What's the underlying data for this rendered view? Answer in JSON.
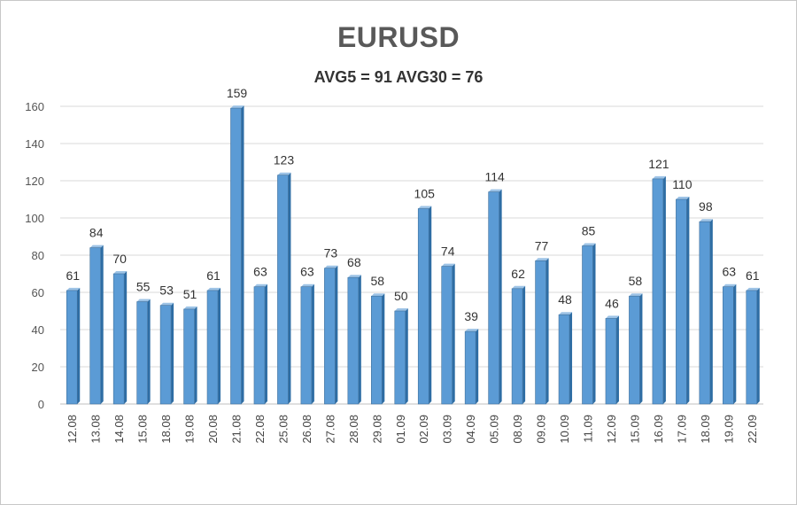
{
  "chart_data": {
    "type": "bar",
    "title": "EURUSD",
    "subtitle": "AVG5 = 91 AVG30 = 76",
    "categories": [
      "12.08",
      "13.08",
      "14.08",
      "15.08",
      "18.08",
      "19.08",
      "20.08",
      "21.08",
      "22.08",
      "25.08",
      "26.08",
      "27.08",
      "28.08",
      "29.08",
      "01.09",
      "02.09",
      "03.09",
      "04.09",
      "05.09",
      "08.09",
      "09.09",
      "10.09",
      "11.09",
      "12.09",
      "15.09",
      "16.09",
      "17.09",
      "18.09",
      "19.09",
      "22.09"
    ],
    "values": [
      61,
      84,
      70,
      55,
      53,
      51,
      61,
      159,
      63,
      123,
      63,
      73,
      68,
      58,
      50,
      105,
      74,
      39,
      114,
      62,
      77,
      48,
      85,
      46,
      58,
      121,
      110,
      98,
      63,
      61
    ],
    "yticks": [
      0,
      20,
      40,
      60,
      80,
      100,
      120,
      140,
      160
    ],
    "ylim": [
      0,
      160
    ],
    "grid": true,
    "legend": "none",
    "bar_color": "#5b9bd5",
    "bar_dark": "#2e6da4",
    "grid_color": "#d9d9d9"
  }
}
